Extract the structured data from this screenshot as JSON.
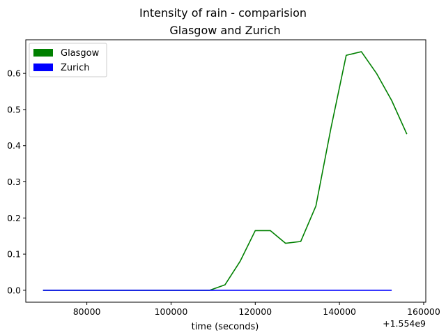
{
  "chart_data": {
    "type": "line",
    "title": "Intensity of rain - comparision",
    "subtitle": "Glasgow and Zurich",
    "xlabel": "time (seconds)",
    "ylabel": "",
    "x_offset_label": "+1.554e9",
    "xlim": [
      65500,
      160500
    ],
    "ylim": [
      -0.033,
      0.693
    ],
    "x_ticks": [
      80000,
      100000,
      120000,
      140000,
      160000
    ],
    "x_tick_labels": [
      "80000",
      "100000",
      "120000",
      "140000",
      "160000"
    ],
    "y_ticks": [
      0.0,
      0.1,
      0.2,
      0.3,
      0.4,
      0.5,
      0.6
    ],
    "y_tick_labels": [
      "0.0",
      "0.1",
      "0.2",
      "0.3",
      "0.4",
      "0.5",
      "0.6"
    ],
    "grid": false,
    "legend_position": "top-left",
    "series": [
      {
        "name": "Glasgow",
        "color": "#008000",
        "x": [
          69600,
          73200,
          76800,
          80400,
          84000,
          87600,
          91200,
          94800,
          98400,
          102000,
          105600,
          109200,
          112800,
          116400,
          120000,
          123600,
          127200,
          130800,
          134400,
          138000,
          141600,
          145200,
          148800,
          152400,
          156000
        ],
        "y": [
          0.0,
          0.0,
          0.0,
          0.0,
          0.0,
          0.0,
          0.0,
          0.0,
          0.0,
          0.0,
          0.0,
          0.0,
          0.015,
          0.08,
          0.165,
          0.165,
          0.13,
          0.135,
          0.233,
          0.45,
          0.65,
          0.66,
          0.6,
          0.525,
          0.432
        ]
      },
      {
        "name": "Zurich",
        "color": "#0000ff",
        "x": [
          69600,
          73200,
          76800,
          80400,
          84000,
          87600,
          91200,
          94800,
          98400,
          102000,
          105600,
          109200,
          112800,
          116400,
          120000,
          123600,
          127200,
          130800,
          134400,
          138000,
          141600,
          145200,
          148800,
          152400
        ],
        "y": [
          0.0,
          0.0,
          0.0,
          0.0,
          0.0,
          0.0,
          0.0,
          0.0,
          0.0,
          0.0,
          0.0,
          0.0,
          0.0,
          0.0,
          0.0,
          0.0,
          0.0,
          0.0,
          0.0,
          0.0,
          0.0,
          0.0,
          0.0,
          0.0
        ]
      }
    ]
  }
}
